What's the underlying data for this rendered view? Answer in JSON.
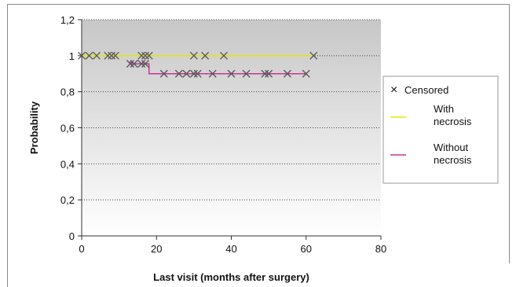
{
  "chart_data": {
    "type": "line",
    "title": "",
    "xlabel": "Last visit (months after surgery)",
    "ylabel": "Probability",
    "xlim": [
      0,
      80
    ],
    "ylim": [
      0,
      1.2
    ],
    "xticks": [
      0,
      20,
      40,
      60,
      80
    ],
    "xtick_labels": [
      "0",
      "20",
      "40",
      "60",
      "80"
    ],
    "yticks": [
      0,
      0.2,
      0.4,
      0.6,
      0.8,
      1.0,
      1.2
    ],
    "ytick_labels": [
      "0",
      "0,2",
      "0,4",
      "0,6",
      "0,8",
      "1",
      "1,2"
    ],
    "grid": "horizontal dotted",
    "legend_position": "right",
    "series": [
      {
        "name": "With necrosis",
        "color": "#e8e800",
        "steps": [
          [
            0,
            1.0
          ],
          [
            62,
            1.0
          ]
        ],
        "censored_x": [
          0,
          2,
          4,
          7,
          8,
          9,
          16,
          17,
          18,
          30,
          33,
          38,
          62
        ]
      },
      {
        "name": "Without necrosis",
        "color": "#cc3399",
        "steps": [
          [
            13,
            0.97
          ],
          [
            13,
            0.955
          ],
          [
            18,
            0.955
          ],
          [
            18,
            0.9
          ],
          [
            60,
            0.9
          ]
        ],
        "censored_points": [
          [
            13,
            0.955
          ],
          [
            14,
            0.955
          ],
          [
            16,
            0.955
          ],
          [
            17,
            0.955
          ],
          [
            22,
            0.9
          ],
          [
            26,
            0.9
          ],
          [
            28,
            0.9
          ],
          [
            30,
            0.9
          ],
          [
            31,
            0.9
          ],
          [
            35,
            0.9
          ],
          [
            40,
            0.9
          ],
          [
            44,
            0.9
          ],
          [
            49,
            0.9
          ],
          [
            50,
            0.9
          ],
          [
            55,
            0.9
          ],
          [
            60,
            0.9
          ]
        ]
      }
    ],
    "legend": {
      "censored_label": "Censored",
      "with_label": [
        "With",
        "necrosis"
      ],
      "without_label": [
        "Without",
        "necrosis"
      ]
    }
  },
  "colors": {
    "plot_bg_top": "#c7c7c7",
    "plot_bg_bottom": "#ffffff",
    "censored_marker": "#555555"
  }
}
